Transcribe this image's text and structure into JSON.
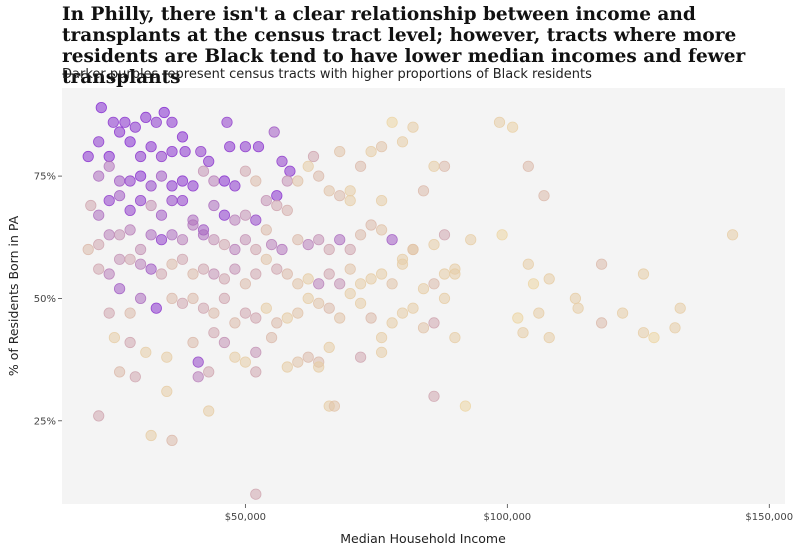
{
  "title": "In Philly, there isn't a clear relationship between income and transplants at the census tract level; however, tracts where more residents are Black tend to have lower median incomes and fewer transplants",
  "subtitle": "Darker purples represent census tracts with higher proportions of Black residents",
  "chart_data": {
    "type": "scatter",
    "xlabel": "Median Household Income",
    "ylabel": "% of Residents Born in PA",
    "xlim": [
      15000,
      153000
    ],
    "ylim": [
      0.08,
      0.93
    ],
    "x_ticks": [
      {
        "value": 50000,
        "label": "$50,000"
      },
      {
        "value": 100000,
        "label": "$100,000"
      },
      {
        "value": 150000,
        "label": "$150,000"
      }
    ],
    "y_ticks": [
      {
        "value": 0.25,
        "label": "25%"
      },
      {
        "value": 0.5,
        "label": "50%"
      },
      {
        "value": 0.75,
        "label": "75%"
      }
    ],
    "grid": false,
    "panel_background": "#f4f4f4",
    "color_scale": {
      "low": "#f2dfa0",
      "high": "#7d1fd2",
      "variable": "share of Black residents"
    },
    "points": [
      [
        22500,
        0.89,
        0.95
      ],
      [
        24800,
        0.86,
        0.9
      ],
      [
        27000,
        0.86,
        0.92
      ],
      [
        29000,
        0.85,
        0.9
      ],
      [
        31000,
        0.87,
        0.92
      ],
      [
        33000,
        0.86,
        0.88
      ],
      [
        34500,
        0.88,
        0.95
      ],
      [
        36000,
        0.86,
        0.9
      ],
      [
        38000,
        0.83,
        0.92
      ],
      [
        46500,
        0.86,
        0.85
      ],
      [
        20000,
        0.79,
        0.9
      ],
      [
        22000,
        0.82,
        0.88
      ],
      [
        24000,
        0.79,
        0.92
      ],
      [
        26000,
        0.84,
        0.9
      ],
      [
        28000,
        0.82,
        0.95
      ],
      [
        30000,
        0.79,
        0.88
      ],
      [
        32000,
        0.81,
        0.9
      ],
      [
        34000,
        0.79,
        0.85
      ],
      [
        36000,
        0.8,
        0.9
      ],
      [
        38500,
        0.8,
        0.9
      ],
      [
        41500,
        0.8,
        0.85
      ],
      [
        43000,
        0.78,
        0.88
      ],
      [
        47000,
        0.81,
        0.9
      ],
      [
        50000,
        0.81,
        0.88
      ],
      [
        52500,
        0.81,
        0.9
      ],
      [
        57000,
        0.78,
        0.85
      ],
      [
        55500,
        0.84,
        0.7
      ],
      [
        58500,
        0.76,
        0.9
      ],
      [
        63000,
        0.79,
        0.3
      ],
      [
        68000,
        0.8,
        0.15
      ],
      [
        22000,
        0.75,
        0.6
      ],
      [
        24000,
        0.77,
        0.55
      ],
      [
        26000,
        0.74,
        0.7
      ],
      [
        28000,
        0.74,
        0.85
      ],
      [
        30000,
        0.75,
        0.92
      ],
      [
        32000,
        0.73,
        0.8
      ],
      [
        34000,
        0.75,
        0.7
      ],
      [
        36000,
        0.73,
        0.88
      ],
      [
        38000,
        0.74,
        0.9
      ],
      [
        40000,
        0.73,
        0.88
      ],
      [
        42000,
        0.76,
        0.4
      ],
      [
        44000,
        0.74,
        0.5
      ],
      [
        46000,
        0.74,
        0.92
      ],
      [
        48000,
        0.73,
        0.88
      ],
      [
        50000,
        0.76,
        0.3
      ],
      [
        52000,
        0.74,
        0.2
      ],
      [
        54000,
        0.7,
        0.4
      ],
      [
        56000,
        0.71,
        0.92
      ],
      [
        58000,
        0.74,
        0.4
      ],
      [
        60000,
        0.74,
        0.15
      ],
      [
        62000,
        0.77,
        0.1
      ],
      [
        64000,
        0.75,
        0.2
      ],
      [
        66000,
        0.72,
        0.15
      ],
      [
        68000,
        0.71,
        0.2
      ],
      [
        70000,
        0.72,
        0.1
      ],
      [
        72000,
        0.77,
        0.2
      ],
      [
        74000,
        0.8,
        0.1
      ],
      [
        76000,
        0.81,
        0.15
      ],
      [
        78000,
        0.86,
        0.05
      ],
      [
        80000,
        0.82,
        0.1
      ],
      [
        82000,
        0.85,
        0.1
      ],
      [
        88000,
        0.77,
        0.2
      ],
      [
        98500,
        0.86,
        0.1
      ],
      [
        101000,
        0.85,
        0.08
      ],
      [
        104000,
        0.77,
        0.2
      ],
      [
        107000,
        0.71,
        0.2
      ],
      [
        86000,
        0.77,
        0.1
      ],
      [
        84000,
        0.72,
        0.2
      ],
      [
        76000,
        0.7,
        0.1
      ],
      [
        70000,
        0.7,
        0.1
      ],
      [
        20500,
        0.69,
        0.3
      ],
      [
        22000,
        0.67,
        0.6
      ],
      [
        24000,
        0.7,
        0.85
      ],
      [
        26000,
        0.71,
        0.7
      ],
      [
        28000,
        0.68,
        0.85
      ],
      [
        30000,
        0.7,
        0.85
      ],
      [
        32000,
        0.69,
        0.4
      ],
      [
        34000,
        0.67,
        0.7
      ],
      [
        36000,
        0.7,
        0.8
      ],
      [
        38000,
        0.7,
        0.85
      ],
      [
        40000,
        0.66,
        0.6
      ],
      [
        42000,
        0.64,
        0.7
      ],
      [
        44000,
        0.69,
        0.6
      ],
      [
        46000,
        0.67,
        0.88
      ],
      [
        48000,
        0.66,
        0.5
      ],
      [
        50000,
        0.67,
        0.4
      ],
      [
        52000,
        0.66,
        0.8
      ],
      [
        54000,
        0.64,
        0.2
      ],
      [
        56000,
        0.69,
        0.3
      ],
      [
        58000,
        0.68,
        0.25
      ],
      [
        20000,
        0.6,
        0.2
      ],
      [
        22000,
        0.61,
        0.3
      ],
      [
        24000,
        0.63,
        0.5
      ],
      [
        26000,
        0.63,
        0.4
      ],
      [
        28000,
        0.64,
        0.5
      ],
      [
        30000,
        0.6,
        0.4
      ],
      [
        32000,
        0.63,
        0.6
      ],
      [
        34000,
        0.62,
        0.85
      ],
      [
        36000,
        0.63,
        0.6
      ],
      [
        38000,
        0.62,
        0.5
      ],
      [
        40000,
        0.65,
        0.55
      ],
      [
        42000,
        0.63,
        0.6
      ],
      [
        44000,
        0.62,
        0.4
      ],
      [
        46000,
        0.61,
        0.3
      ],
      [
        48000,
        0.6,
        0.5
      ],
      [
        50000,
        0.62,
        0.4
      ],
      [
        52000,
        0.6,
        0.3
      ],
      [
        55000,
        0.61,
        0.5
      ],
      [
        57000,
        0.6,
        0.55
      ],
      [
        60000,
        0.62,
        0.2
      ],
      [
        62000,
        0.61,
        0.5
      ],
      [
        64000,
        0.62,
        0.4
      ],
      [
        66000,
        0.6,
        0.3
      ],
      [
        68000,
        0.62,
        0.6
      ],
      [
        70000,
        0.6,
        0.3
      ],
      [
        72000,
        0.63,
        0.2
      ],
      [
        74000,
        0.65,
        0.2
      ],
      [
        76000,
        0.64,
        0.15
      ],
      [
        78000,
        0.62,
        0.7
      ],
      [
        80000,
        0.58,
        0.1
      ],
      [
        82000,
        0.6,
        0.1
      ],
      [
        86000,
        0.61,
        0.1
      ],
      [
        88000,
        0.63,
        0.3
      ],
      [
        90000,
        0.56,
        0.1
      ],
      [
        93000,
        0.62,
        0.1
      ],
      [
        99000,
        0.63,
        0.05
      ],
      [
        22000,
        0.56,
        0.3
      ],
      [
        24000,
        0.55,
        0.5
      ],
      [
        26000,
        0.58,
        0.4
      ],
      [
        28000,
        0.58,
        0.3
      ],
      [
        30000,
        0.57,
        0.5
      ],
      [
        32000,
        0.56,
        0.7
      ],
      [
        34000,
        0.55,
        0.3
      ],
      [
        36000,
        0.57,
        0.2
      ],
      [
        38000,
        0.58,
        0.3
      ],
      [
        40000,
        0.55,
        0.2
      ],
      [
        42000,
        0.56,
        0.3
      ],
      [
        44000,
        0.55,
        0.4
      ],
      [
        46000,
        0.54,
        0.3
      ],
      [
        48000,
        0.56,
        0.4
      ],
      [
        50000,
        0.53,
        0.2
      ],
      [
        52000,
        0.55,
        0.3
      ],
      [
        54000,
        0.58,
        0.15
      ],
      [
        56000,
        0.56,
        0.3
      ],
      [
        58000,
        0.55,
        0.2
      ],
      [
        60000,
        0.53,
        0.15
      ],
      [
        62000,
        0.54,
        0.1
      ],
      [
        64000,
        0.53,
        0.5
      ],
      [
        66000,
        0.55,
        0.3
      ],
      [
        68000,
        0.53,
        0.4
      ],
      [
        70000,
        0.56,
        0.15
      ],
      [
        72000,
        0.53,
        0.1
      ],
      [
        74000,
        0.54,
        0.1
      ],
      [
        76000,
        0.55,
        0.1
      ],
      [
        78000,
        0.53,
        0.15
      ],
      [
        80000,
        0.57,
        0.1
      ],
      [
        82000,
        0.6,
        0.15
      ],
      [
        84000,
        0.52,
        0.1
      ],
      [
        86000,
        0.53,
        0.2
      ],
      [
        88000,
        0.55,
        0.1
      ],
      [
        90000,
        0.55,
        0.1
      ],
      [
        104000,
        0.57,
        0.1
      ],
      [
        105000,
        0.53,
        0.05
      ],
      [
        108000,
        0.54,
        0.1
      ],
      [
        118000,
        0.57,
        0.2
      ],
      [
        126000,
        0.55,
        0.1
      ],
      [
        143000,
        0.63,
        0.1
      ],
      [
        24000,
        0.47,
        0.3
      ],
      [
        26000,
        0.52,
        0.7
      ],
      [
        28000,
        0.47,
        0.2
      ],
      [
        30000,
        0.5,
        0.6
      ],
      [
        33000,
        0.48,
        0.9
      ],
      [
        36000,
        0.5,
        0.2
      ],
      [
        38000,
        0.49,
        0.3
      ],
      [
        40000,
        0.5,
        0.2
      ],
      [
        42000,
        0.48,
        0.3
      ],
      [
        44000,
        0.47,
        0.2
      ],
      [
        46000,
        0.5,
        0.3
      ],
      [
        48000,
        0.45,
        0.2
      ],
      [
        50000,
        0.47,
        0.3
      ],
      [
        52000,
        0.46,
        0.3
      ],
      [
        54000,
        0.48,
        0.1
      ],
      [
        56000,
        0.45,
        0.2
      ],
      [
        58000,
        0.46,
        0.1
      ],
      [
        60000,
        0.47,
        0.15
      ],
      [
        62000,
        0.5,
        0.1
      ],
      [
        64000,
        0.49,
        0.15
      ],
      [
        66000,
        0.48,
        0.2
      ],
      [
        68000,
        0.46,
        0.15
      ],
      [
        70000,
        0.51,
        0.1
      ],
      [
        72000,
        0.49,
        0.1
      ],
      [
        74000,
        0.46,
        0.2
      ],
      [
        76000,
        0.42,
        0.1
      ],
      [
        78000,
        0.45,
        0.1
      ],
      [
        80000,
        0.47,
        0.1
      ],
      [
        82000,
        0.48,
        0.1
      ],
      [
        84000,
        0.44,
        0.15
      ],
      [
        86000,
        0.45,
        0.3
      ],
      [
        88000,
        0.5,
        0.1
      ],
      [
        102000,
        0.46,
        0.05
      ],
      [
        103000,
        0.43,
        0.1
      ],
      [
        106000,
        0.47,
        0.1
      ],
      [
        108000,
        0.42,
        0.1
      ],
      [
        113000,
        0.5,
        0.1
      ],
      [
        113500,
        0.48,
        0.1
      ],
      [
        118000,
        0.45,
        0.2
      ],
      [
        122000,
        0.47,
        0.1
      ],
      [
        126000,
        0.43,
        0.1
      ],
      [
        128000,
        0.42,
        0.05
      ],
      [
        132000,
        0.44,
        0.1
      ],
      [
        133000,
        0.48,
        0.1
      ],
      [
        25000,
        0.42,
        0.1
      ],
      [
        28000,
        0.41,
        0.3
      ],
      [
        31000,
        0.39,
        0.1
      ],
      [
        35000,
        0.38,
        0.1
      ],
      [
        40000,
        0.41,
        0.2
      ],
      [
        41000,
        0.37,
        0.8
      ],
      [
        44000,
        0.43,
        0.3
      ],
      [
        46000,
        0.41,
        0.4
      ],
      [
        48000,
        0.38,
        0.1
      ],
      [
        52000,
        0.39,
        0.4
      ],
      [
        55000,
        0.42,
        0.2
      ],
      [
        58000,
        0.36,
        0.1
      ],
      [
        60000,
        0.37,
        0.15
      ],
      [
        64000,
        0.37,
        0.2
      ],
      [
        66000,
        0.4,
        0.1
      ],
      [
        72000,
        0.38,
        0.3
      ],
      [
        76000,
        0.39,
        0.1
      ],
      [
        90000,
        0.42,
        0.1
      ],
      [
        26000,
        0.35,
        0.2
      ],
      [
        29000,
        0.34,
        0.3
      ],
      [
        35000,
        0.31,
        0.1
      ],
      [
        41000,
        0.34,
        0.5
      ],
      [
        43000,
        0.35,
        0.3
      ],
      [
        50000,
        0.37,
        0.1
      ],
      [
        52000,
        0.35,
        0.3
      ],
      [
        62000,
        0.38,
        0.2
      ],
      [
        64000,
        0.36,
        0.1
      ],
      [
        66000,
        0.28,
        0.1
      ],
      [
        67000,
        0.28,
        0.15
      ],
      [
        86000,
        0.3,
        0.3
      ],
      [
        22000,
        0.26,
        0.3
      ],
      [
        32000,
        0.22,
        0.1
      ],
      [
        36000,
        0.21,
        0.2
      ],
      [
        43000,
        0.27,
        0.1
      ],
      [
        52000,
        0.1,
        0.3
      ],
      [
        92000,
        0.28,
        0.05
      ]
    ]
  }
}
